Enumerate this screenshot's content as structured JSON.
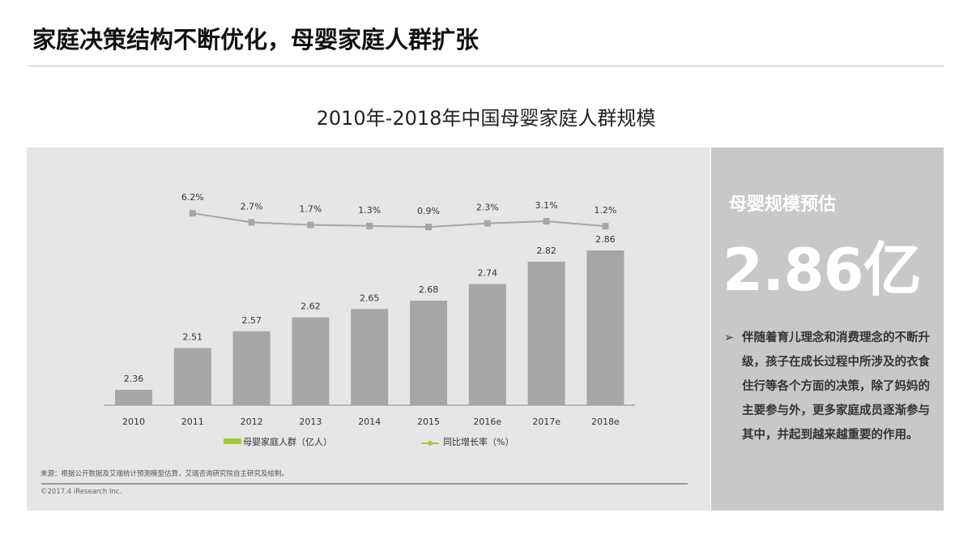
{
  "header": {
    "title": "家庭决策结构不断优化，母婴家庭人群扩张"
  },
  "side": {
    "heading": "母婴规模预估",
    "value": "2.86亿",
    "bullet": "➢",
    "text": "伴随着育儿理念和消费理念的不断升级，孩子在成长过程中所涉及的衣食住行等各个方面的决策，除了妈妈的主要参与外，更多家庭成员逐渐参与其中，并起到越来越重要的作用。"
  },
  "footer": {
    "source": "来源：根据公开数据及艾瑞统计预测模型估算，艾瑞咨询研究院自主研究及绘制。",
    "copyright": "©2017.4 iResearch Inc."
  },
  "chart_data": {
    "type": "bar+line",
    "title": "2010年-2018年中国母婴家庭人群规模",
    "categories": [
      "2010",
      "2011",
      "2012",
      "2013",
      "2014",
      "2015",
      "2016e",
      "2017e",
      "2018e"
    ],
    "series": [
      {
        "name": "母婴家庭人群（亿人）",
        "type": "bar",
        "values": [
          2.36,
          2.51,
          2.57,
          2.62,
          2.65,
          2.68,
          2.74,
          2.82,
          2.86
        ],
        "labels": [
          "2.36",
          "2.51",
          "2.57",
          "2.62",
          "2.65",
          "2.68",
          "2.74",
          "2.82",
          "2.86"
        ]
      },
      {
        "name": "同比增长率（%）",
        "type": "line",
        "values": [
          null,
          6.2,
          2.7,
          1.7,
          1.3,
          0.9,
          2.3,
          3.1,
          1.2
        ],
        "labels": [
          "",
          "6.2%",
          "2.7%",
          "1.7%",
          "1.3%",
          "0.9%",
          "2.3%",
          "3.1%",
          "1.2%"
        ]
      }
    ],
    "colors": {
      "bar": "#a6a6a6",
      "line": "#a6a6a6",
      "legend_bar": "#a4c93a",
      "legend_line": "#a4c93a"
    },
    "legend": "bottom",
    "grid": false
  }
}
